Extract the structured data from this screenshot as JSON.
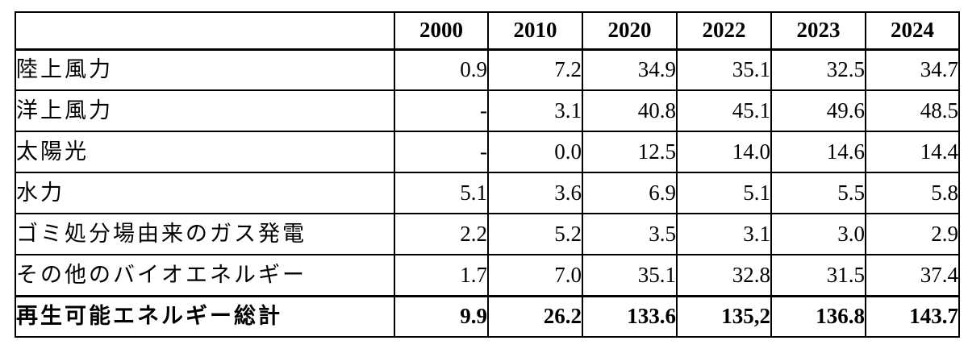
{
  "chart_data": {
    "type": "table",
    "columns": [
      "",
      "2000",
      "2010",
      "2020",
      "2022",
      "2023",
      "2024"
    ],
    "rows": [
      {
        "label": "陸上風力",
        "values": [
          "0.9",
          "7.2",
          "34.9",
          "35.1",
          "32.5",
          "34.7"
        ],
        "bold": false
      },
      {
        "label": "洋上風力",
        "values": [
          "-",
          "3.1",
          "40.8",
          "45.1",
          "49.6",
          "48.5"
        ],
        "bold": false
      },
      {
        "label": "太陽光",
        "values": [
          "-",
          "0.0",
          "12.5",
          "14.0",
          "14.6",
          "14.4"
        ],
        "bold": false
      },
      {
        "label": "水力",
        "values": [
          "5.1",
          "3.6",
          "6.9",
          "5.1",
          "5.5",
          "5.8"
        ],
        "bold": false
      },
      {
        "label": "ゴミ処分場由来のガス発電",
        "values": [
          "2.2",
          "5.2",
          "3.5",
          "3.1",
          "3.0",
          "2.9"
        ],
        "bold": false
      },
      {
        "label": "その他のバイオエネルギー",
        "values": [
          "1.7",
          "7.0",
          "35.1",
          "32.8",
          "31.5",
          "37.4"
        ],
        "bold": false
      },
      {
        "label": "再生可能エネルギー総計",
        "values": [
          "9.9",
          "26.2",
          "133.6",
          "135,2",
          "136.8",
          "143.7"
        ],
        "bold": true
      }
    ]
  }
}
